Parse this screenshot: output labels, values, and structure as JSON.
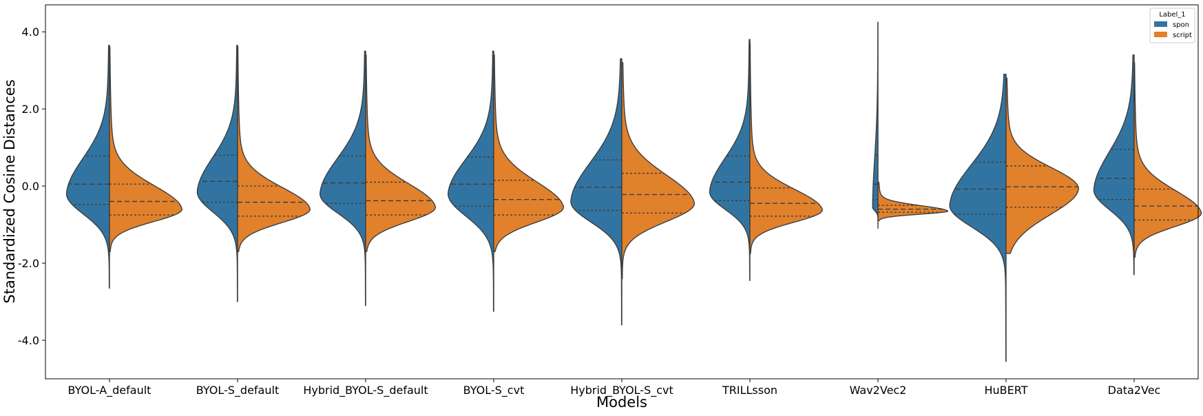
{
  "chart_data": {
    "type": "violin",
    "split": true,
    "xlabel": "Models",
    "ylabel": "Standardized Cosine Distances",
    "ylim": [
      -5.0,
      4.7
    ],
    "yticks": [
      4.0,
      2.0,
      0.0,
      -2.0,
      -4.0
    ],
    "ytick_labels": [
      "4.0",
      "2.0",
      "0.0",
      "-2.0",
      "-4.0"
    ],
    "categories": [
      "BYOL-A_default",
      "BYOL-S_default",
      "Hybrid_BYOL-S_default",
      "BYOL-S_cvt",
      "Hybrid_BYOL-S_cvt",
      "TRILLsson",
      "Wav2Vec2",
      "HuBERT",
      "Data2Vec"
    ],
    "legend": {
      "title": "Label_1",
      "position": "top-right",
      "entries": [
        {
          "label": "spon",
          "color": "#3274a1"
        },
        {
          "label": "script",
          "color": "#e1812c"
        }
      ]
    },
    "series": [
      {
        "name": "spon",
        "color": "#3274a1",
        "violins": [
          {
            "min": -2.65,
            "max": 3.65,
            "q1": -0.48,
            "median": 0.05,
            "q3": 0.78,
            "mode": -0.2,
            "width": 0.8
          },
          {
            "min": -3.0,
            "max": 3.65,
            "q1": -0.42,
            "median": 0.12,
            "q3": 0.8,
            "mode": -0.15,
            "width": 0.75
          },
          {
            "min": -3.1,
            "max": 3.5,
            "q1": -0.45,
            "median": 0.08,
            "q3": 0.78,
            "mode": -0.2,
            "width": 0.85
          },
          {
            "min": -3.25,
            "max": 3.5,
            "q1": -0.52,
            "median": 0.05,
            "q3": 0.75,
            "mode": -0.2,
            "width": 0.85
          },
          {
            "min": -3.6,
            "max": 3.3,
            "q1": -0.63,
            "median": -0.03,
            "q3": 0.68,
            "mode": -0.4,
            "width": 0.95
          },
          {
            "min": -2.45,
            "max": 3.8,
            "q1": -0.38,
            "median": 0.1,
            "q3": 0.78,
            "mode": -0.15,
            "width": 0.75
          },
          {
            "min": -1.1,
            "max": 4.25,
            "q1": -0.35,
            "median": 0.05,
            "q3": 0.8,
            "mode": -0.55,
            "width": 0.1
          },
          {
            "min": -4.55,
            "max": 2.9,
            "q1": -0.73,
            "median": -0.08,
            "q3": 0.62,
            "mode": -0.5,
            "width": 1.05
          },
          {
            "min": -2.3,
            "max": 3.4,
            "q1": -0.35,
            "median": 0.2,
            "q3": 0.95,
            "mode": -0.1,
            "width": 0.75
          }
        ]
      },
      {
        "name": "script",
        "color": "#e1812c",
        "violins": [
          {
            "min": -1.7,
            "max": 3.6,
            "q1": -0.75,
            "median": -0.4,
            "q3": 0.05,
            "mode": -0.6,
            "width": 1.35
          },
          {
            "min": -1.7,
            "max": 3.6,
            "q1": -0.78,
            "median": -0.42,
            "q3": 0.0,
            "mode": -0.6,
            "width": 1.35
          },
          {
            "min": -1.7,
            "max": 3.4,
            "q1": -0.75,
            "median": -0.38,
            "q3": 0.1,
            "mode": -0.55,
            "width": 1.3
          },
          {
            "min": -1.7,
            "max": 3.4,
            "q1": -0.75,
            "median": -0.35,
            "q3": 0.15,
            "mode": -0.55,
            "width": 1.3
          },
          {
            "min": -2.4,
            "max": 3.2,
            "q1": -0.7,
            "median": -0.22,
            "q3": 0.33,
            "mode": -0.45,
            "width": 1.35
          },
          {
            "min": -1.75,
            "max": 3.7,
            "q1": -0.78,
            "median": -0.45,
            "q3": -0.05,
            "mode": -0.62,
            "width": 1.35
          },
          {
            "min": -0.9,
            "max": 0.1,
            "q1": -0.68,
            "median": -0.6,
            "q3": -0.5,
            "mode": -0.65,
            "width": 1.3
          },
          {
            "min": -1.75,
            "max": 2.8,
            "q1": -0.55,
            "median": -0.02,
            "q3": 0.52,
            "mode": -0.05,
            "width": 1.35
          },
          {
            "min": -1.85,
            "max": 3.2,
            "q1": -0.88,
            "median": -0.52,
            "q3": -0.08,
            "mode": -0.7,
            "width": 1.25
          }
        ]
      }
    ]
  }
}
